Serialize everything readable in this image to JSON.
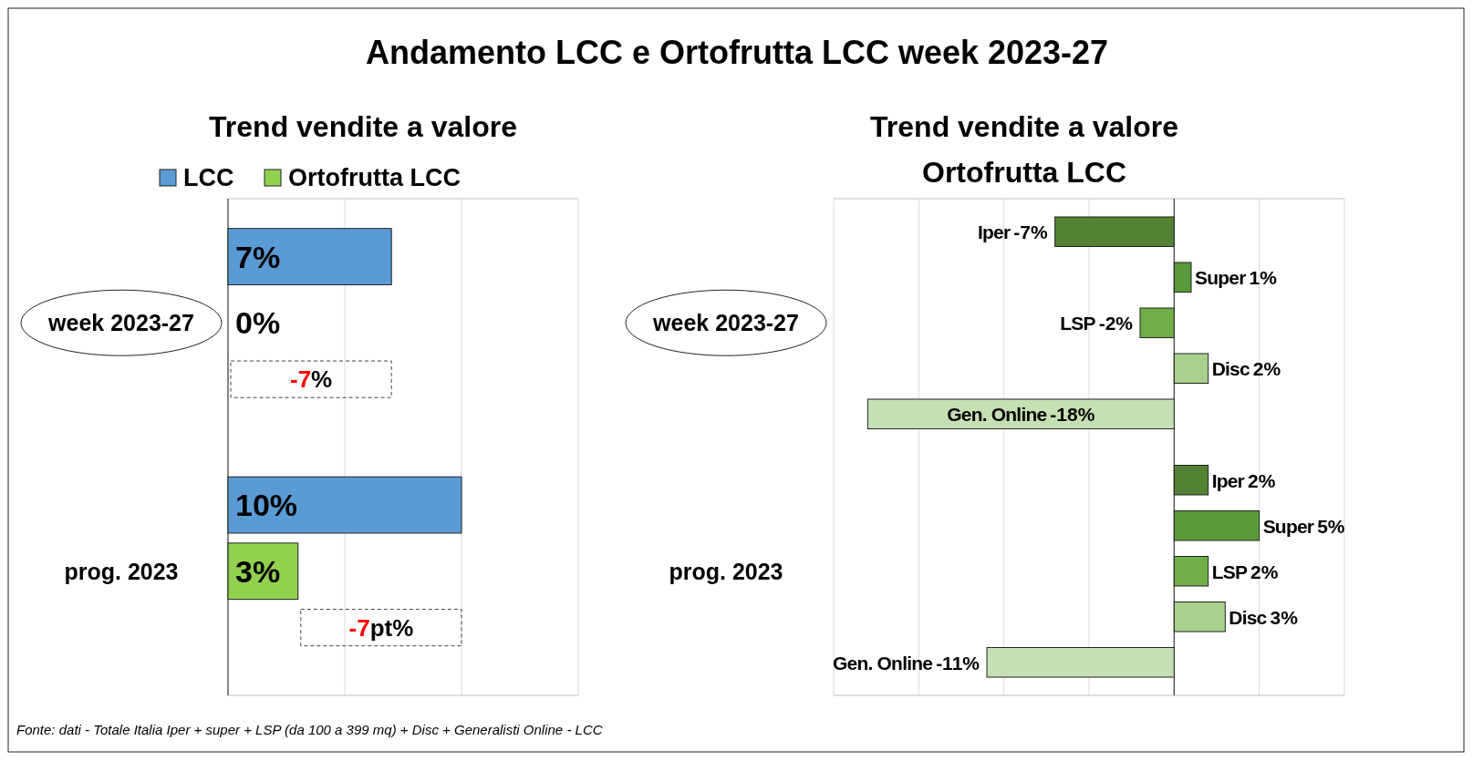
{
  "chart_data": [
    {
      "type": "bar",
      "orientation": "horizontal",
      "title": "Andamento LCC e Ortofrutta LCC week 2023-27",
      "subtitle": "Trend vendite a valore",
      "categories": [
        "week 2023-27",
        "prog. 2023"
      ],
      "series": [
        {
          "name": "LCC",
          "color": "#5b9bd5",
          "values": [
            7,
            10
          ],
          "value_labels": [
            "7%",
            "10%"
          ]
        },
        {
          "name": "Ortofrutta LCC",
          "color": "#92d050",
          "values": [
            0,
            3
          ],
          "value_labels": [
            "0%",
            "3%"
          ]
        }
      ],
      "xlim": [
        0,
        15
      ],
      "xticks": [
        {
          "value": 0,
          "label": null
        },
        {
          "value": 5,
          "label": null
        },
        {
          "value": 10,
          "label": null
        },
        {
          "value": 15,
          "label": null
        }
      ],
      "grid": "x",
      "legend": "top",
      "tick_labels": "y",
      "annotations": [
        "-7%",
        "-7pt%",
        "Fonte: dati - Totale Italia Iper + super + LSP (da 100 a 399 mq) + Disc + Generalisti Online - LCC"
      ]
    },
    {
      "type": "bar",
      "orientation": "horizontal",
      "title": "Trend vendite a valore",
      "subtitle": "Ortofrutta LCC",
      "categories": [
        "week 2023-27",
        "prog. 2023"
      ],
      "series": [
        {
          "name": "Iper",
          "color": "#548235",
          "values": [
            -7,
            2
          ],
          "value_labels": [
            "-7%",
            "2%"
          ]
        },
        {
          "name": "Super",
          "color": "#5a9a3a",
          "values": [
            1,
            5
          ],
          "value_labels": [
            "1%",
            "5%"
          ]
        },
        {
          "name": "LSP",
          "color": "#70ad47",
          "values": [
            -2,
            2
          ],
          "value_labels": [
            "-2%",
            "2%"
          ]
        },
        {
          "name": "Disc",
          "color": "#a9d18e",
          "values": [
            2,
            3
          ],
          "value_labels": [
            "2%",
            "3%"
          ]
        },
        {
          "name": "Gen. Online",
          "color": "#c5e0b4",
          "values": [
            -18,
            -11
          ],
          "value_labels": [
            "-18%",
            "-11%"
          ]
        }
      ],
      "xlim": [
        -20,
        10
      ],
      "xticks": [
        {
          "value": -20,
          "label": null
        },
        {
          "value": -15,
          "label": null
        },
        {
          "value": -10,
          "label": null
        },
        {
          "value": -5,
          "label": null
        },
        {
          "value": 0,
          "label": null
        },
        {
          "value": 5,
          "label": null
        },
        {
          "value": 10,
          "label": null
        }
      ],
      "grid": "x",
      "legend": false,
      "tick_labels": "y"
    }
  ]
}
